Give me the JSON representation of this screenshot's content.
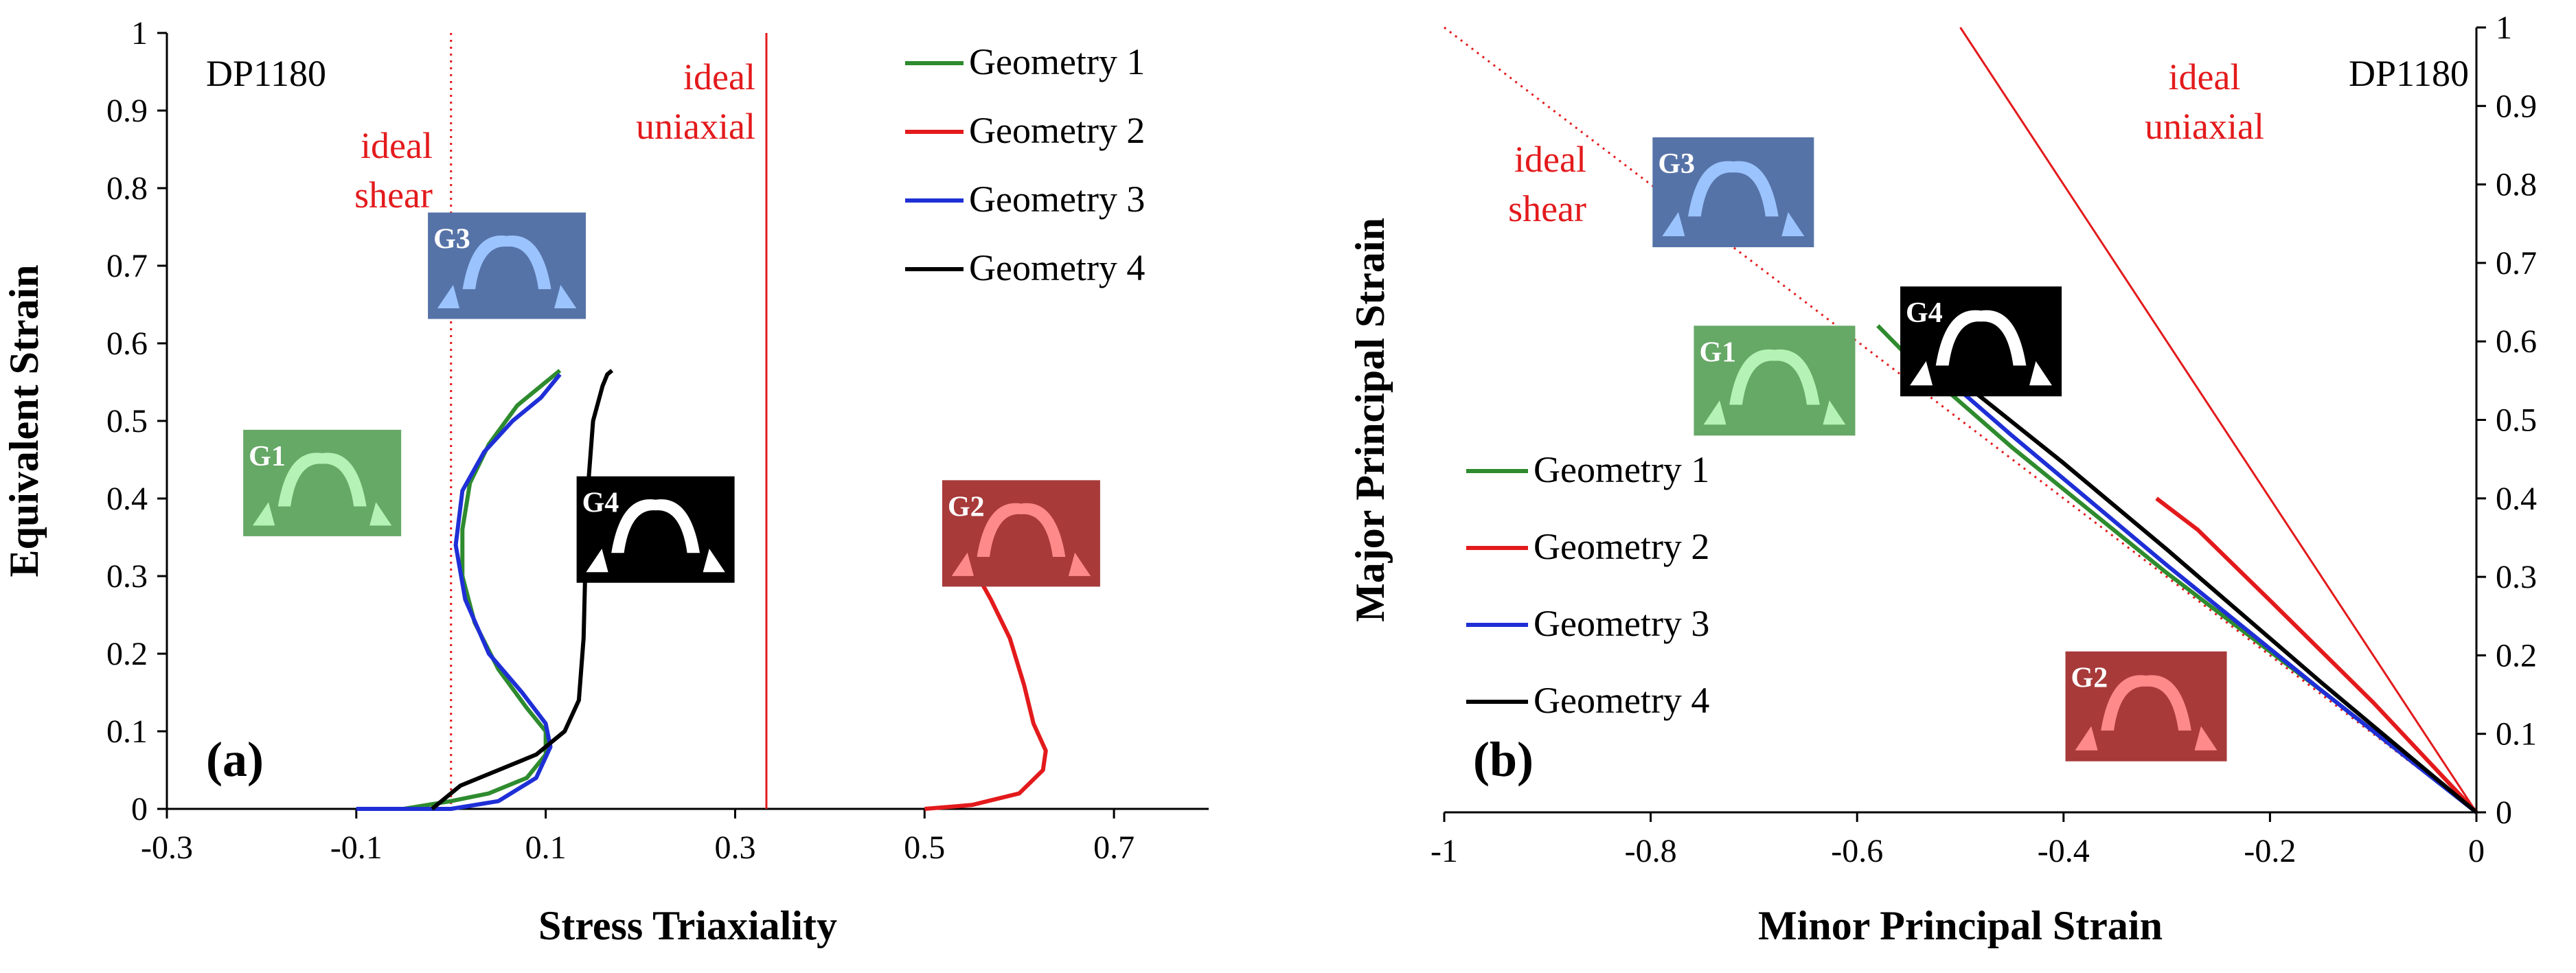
{
  "colors": {
    "geometry1": "#2e8b2e",
    "geometry2": "#e31a1c",
    "geometry3": "#1f2fd6",
    "geometry4": "#000000",
    "ideal": "#e31a1c"
  },
  "chart_data": [
    {
      "type": "line",
      "panel_label": "(a)",
      "material": "DP1180",
      "xlabel": "Stress Triaxiality",
      "ylabel": "Equivalent Strain",
      "xlim": [
        -0.3,
        0.8
      ],
      "ylim": [
        0,
        1
      ],
      "x_ticks": [
        "-0.3",
        "-0.1",
        "0.1",
        "0.3",
        "0.5",
        "0.7"
      ],
      "y_ticks": [
        "0",
        "0.1",
        "0.2",
        "0.3",
        "0.4",
        "0.5",
        "0.6",
        "0.7",
        "0.8",
        "0.9",
        "1"
      ],
      "reference_lines": [
        {
          "name": "ideal shear",
          "label_line1": "ideal",
          "label_line2": "shear",
          "x": 0,
          "style": "dotted"
        },
        {
          "name": "ideal uniaxial",
          "label_line1": "ideal",
          "label_line2": "uniaxial",
          "x": 0.333,
          "style": "solid"
        }
      ],
      "insets": [
        {
          "label": "G1",
          "bg": "#66a866",
          "shape": "#b5f2b5",
          "at": [
            -0.136,
            0.42
          ]
        },
        {
          "label": "G2",
          "bg": "#a83a3a",
          "shape": "#ff8a8a",
          "at": [
            0.602,
            0.355
          ]
        },
        {
          "label": "G3",
          "bg": "#5673a8",
          "shape": "#9bc4ff",
          "at": [
            0.059,
            0.7
          ]
        },
        {
          "label": "G4",
          "bg": "#000000",
          "shape": "#ffffff",
          "at": [
            0.216,
            0.36
          ]
        }
      ],
      "legend": [
        "Geometry 1",
        "Geometry 2",
        "Geometry 3",
        "Geometry 4"
      ],
      "series": [
        {
          "name": "Geometry 1",
          "color": "#2e8b2e",
          "points": [
            [
              -0.05,
              0
            ],
            [
              0.0,
              0.01
            ],
            [
              0.04,
              0.02
            ],
            [
              0.08,
              0.04
            ],
            [
              0.1,
              0.07
            ],
            [
              0.1,
              0.1
            ],
            [
              0.08,
              0.13
            ],
            [
              0.05,
              0.18
            ],
            [
              0.025,
              0.24
            ],
            [
              0.012,
              0.3
            ],
            [
              0.012,
              0.36
            ],
            [
              0.02,
              0.42
            ],
            [
              0.04,
              0.47
            ],
            [
              0.07,
              0.52
            ],
            [
              0.1,
              0.55
            ],
            [
              0.115,
              0.565
            ]
          ]
        },
        {
          "name": "Geometry 2",
          "color": "#e31a1c",
          "points": [
            [
              0.5,
              0
            ],
            [
              0.55,
              0.005
            ],
            [
              0.6,
              0.02
            ],
            [
              0.625,
              0.05
            ],
            [
              0.628,
              0.075
            ],
            [
              0.615,
              0.11
            ],
            [
              0.605,
              0.16
            ],
            [
              0.59,
              0.22
            ],
            [
              0.57,
              0.27
            ],
            [
              0.545,
              0.325
            ]
          ]
        },
        {
          "name": "Geometry 3",
          "color": "#1f2fd6",
          "points": [
            [
              -0.1,
              0
            ],
            [
              0.0,
              0
            ],
            [
              0.05,
              0.01
            ],
            [
              0.09,
              0.04
            ],
            [
              0.105,
              0.08
            ],
            [
              0.1,
              0.11
            ],
            [
              0.075,
              0.15
            ],
            [
              0.04,
              0.2
            ],
            [
              0.015,
              0.27
            ],
            [
              0.005,
              0.34
            ],
            [
              0.012,
              0.41
            ],
            [
              0.035,
              0.46
            ],
            [
              0.065,
              0.5
            ],
            [
              0.095,
              0.53
            ],
            [
              0.115,
              0.56
            ]
          ]
        },
        {
          "name": "Geometry 4",
          "color": "#000000",
          "points": [
            [
              -0.02,
              0
            ],
            [
              -0.01,
              0.01
            ],
            [
              0.01,
              0.03
            ],
            [
              0.05,
              0.05
            ],
            [
              0.09,
              0.07
            ],
            [
              0.12,
              0.1
            ],
            [
              0.135,
              0.14
            ],
            [
              0.14,
              0.22
            ],
            [
              0.142,
              0.32
            ],
            [
              0.145,
              0.42
            ],
            [
              0.15,
              0.5
            ],
            [
              0.16,
              0.545
            ],
            [
              0.165,
              0.56
            ],
            [
              0.17,
              0.565
            ]
          ]
        }
      ]
    },
    {
      "type": "line",
      "panel_label": "(b)",
      "material": "DP1180",
      "xlabel": "Minor Principal Strain",
      "ylabel": "Major Principal Strain",
      "xlim": [
        -1,
        0
      ],
      "ylim": [
        0,
        1
      ],
      "x_ticks": [
        "-1",
        "-0.8",
        "-0.6",
        "-0.4",
        "-0.2",
        "0"
      ],
      "y_ticks": [
        "0",
        "0.1",
        "0.2",
        "0.3",
        "0.4",
        "0.5",
        "0.6",
        "0.7",
        "0.8",
        "0.9",
        "1"
      ],
      "reference_lines": [
        {
          "name": "ideal shear",
          "label_line1": "ideal",
          "label_line2": "shear",
          "from": [
            -1,
            1
          ],
          "to": [
            0,
            0
          ],
          "style": "dotted"
        },
        {
          "name": "ideal uniaxial",
          "label_line1": "ideal",
          "label_line2": "uniaxial",
          "from": [
            -0.5,
            1
          ],
          "to": [
            0,
            0
          ],
          "style": "solid"
        }
      ],
      "insets": [
        {
          "label": "G1",
          "bg": "#66a866",
          "shape": "#b5f2b5",
          "at": [
            -0.68,
            0.55
          ]
        },
        {
          "label": "G2",
          "bg": "#a83a3a",
          "shape": "#ff8a8a",
          "at": [
            -0.32,
            0.135
          ]
        },
        {
          "label": "G3",
          "bg": "#5673a8",
          "shape": "#9bc4ff",
          "at": [
            -0.72,
            0.79
          ]
        },
        {
          "label": "G4",
          "bg": "#000000",
          "shape": "#ffffff",
          "at": [
            -0.48,
            0.6
          ]
        }
      ],
      "legend": [
        "Geometry 1",
        "Geometry 2",
        "Geometry 3",
        "Geometry 4"
      ],
      "series": [
        {
          "name": "Geometry 1",
          "color": "#2e8b2e",
          "points": [
            [
              -0.58,
              0.62
            ],
            [
              -0.55,
              0.58
            ],
            [
              -0.45,
              0.465
            ],
            [
              -0.3,
              0.305
            ],
            [
              -0.15,
              0.155
            ],
            [
              0,
              0
            ]
          ]
        },
        {
          "name": "Geometry 2",
          "color": "#e31a1c",
          "points": [
            [
              -0.31,
              0.4
            ],
            [
              -0.27,
              0.36
            ],
            [
              -0.2,
              0.27
            ],
            [
              -0.1,
              0.14
            ],
            [
              0,
              0
            ]
          ]
        },
        {
          "name": "Geometry 3",
          "color": "#1f2fd6",
          "points": [
            [
              -0.52,
              0.56
            ],
            [
              -0.45,
              0.48
            ],
            [
              -0.3,
              0.315
            ],
            [
              -0.15,
              0.155
            ],
            [
              0,
              0
            ]
          ]
        },
        {
          "name": "Geometry 4",
          "color": "#000000",
          "points": [
            [
              -0.5,
              0.55
            ],
            [
              -0.4,
              0.445
            ],
            [
              -0.3,
              0.335
            ],
            [
              -0.15,
              0.165
            ],
            [
              0,
              0
            ]
          ]
        }
      ]
    }
  ]
}
